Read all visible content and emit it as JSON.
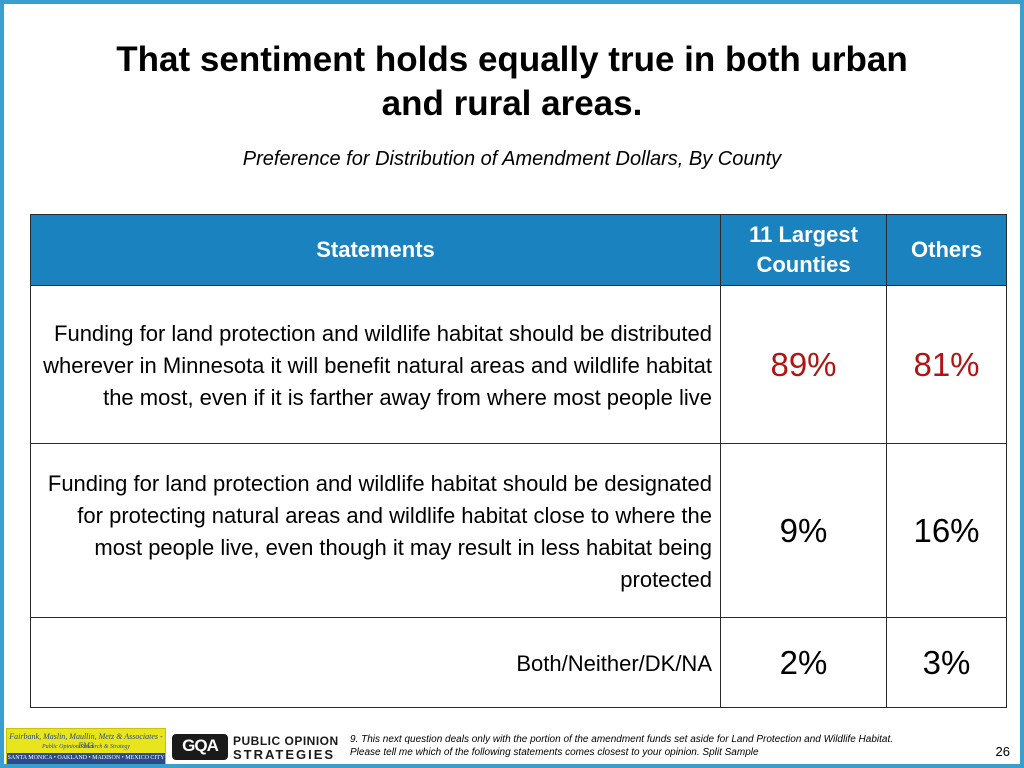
{
  "title_line1": "That sentiment holds equally true in both urban",
  "title_line2": "and rural areas.",
  "subtitle": "Preference for Distribution of Amendment Dollars, By County",
  "table": {
    "headers": [
      "Statements",
      "11 Largest Counties",
      "Others"
    ],
    "rows": [
      {
        "statement": "Funding for land protection and wildlife habitat should be distributed wherever in Minnesota it will benefit natural areas and wildlife habitat the most, even if it is farther away from where most people live",
        "largest": "89%",
        "others": "81%"
      },
      {
        "statement": "Funding for land protection and wildlife habitat should be designated for protecting natural areas and wildlife habitat close to where the most people live, even though it may result in less habitat being protected",
        "largest": "9%",
        "others": "16%"
      },
      {
        "statement": "Both/Neither/DK/NA",
        "largest": "2%",
        "others": "3%"
      }
    ]
  },
  "footer": {
    "fm3_line1": "Fairbank, Maslin, Maullin, Metz & Associates - FM3",
    "fm3_line2": "Public Opinion Research & Strategy",
    "fm3_line3": "SANTA MONICA • OAKLAND • MADISON • MEXICO CITY",
    "logo_mark": "GQA",
    "logo_line1": "PUBLIC OPINION",
    "logo_line2": "STRATEGIES",
    "footnote_line1": "9. This next question deals only with the portion of the amendment funds set aside for Land Protection and Wildlife Habitat.",
    "footnote_line2": "Please tell me which of the following statements comes closest to your opinion. Split Sample",
    "page_number": "26"
  },
  "colors": {
    "header_bg": "#1a83bf",
    "frame": "#3a9fcf",
    "highlight_value": "#b01515"
  }
}
